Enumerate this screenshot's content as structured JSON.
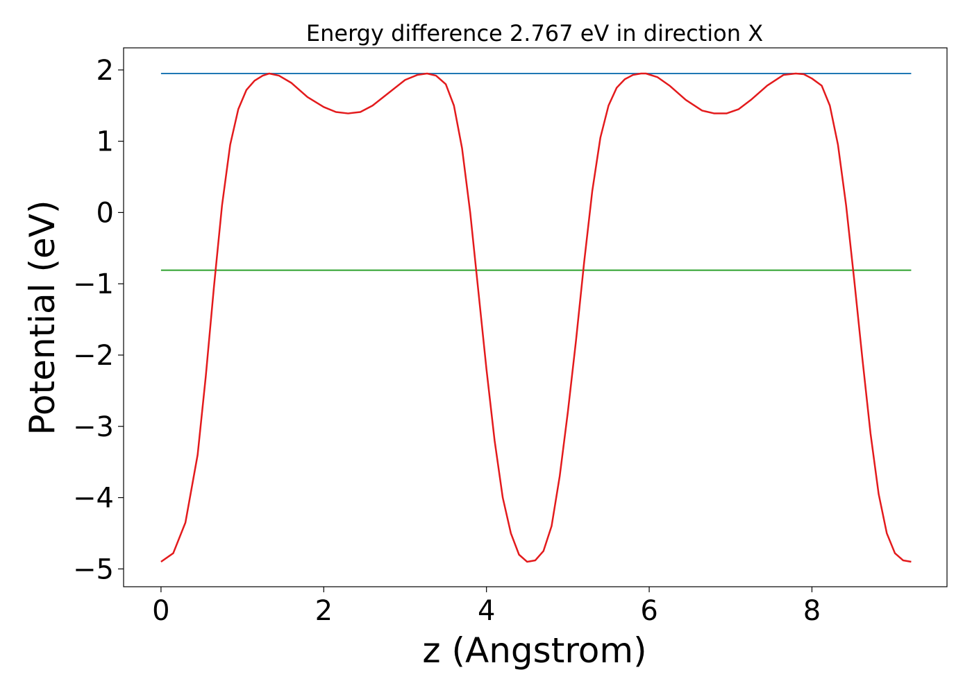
{
  "chart_data": {
    "type": "line",
    "title": "Energy difference 2.767 eV in direction X",
    "xlabel": "z (Angstrom)",
    "ylabel": "Potential (eV)",
    "xlim": [
      -0.46,
      9.66
    ],
    "ylim": [
      -5.25,
      2.31
    ],
    "xticks": [
      0,
      2,
      4,
      6,
      8
    ],
    "xtick_labels": [
      "0",
      "2",
      "4",
      "6",
      "8"
    ],
    "yticks": [
      2,
      1,
      0,
      -1,
      -2,
      -3,
      -4,
      -5
    ],
    "ytick_labels": [
      "2",
      "1",
      "0",
      "−1",
      "−2",
      "−3",
      "−4",
      "−5"
    ],
    "grid": false,
    "legend": "none",
    "series": [
      {
        "color": "#1f77b4",
        "style": "horizontal-line",
        "x": [
          0,
          9.22
        ],
        "y": [
          1.95,
          1.95
        ]
      },
      {
        "color": "#2ca02c",
        "style": "horizontal-line",
        "x": [
          0,
          9.22
        ],
        "y": [
          -0.81,
          -0.81
        ]
      },
      {
        "color": "#e31a1c",
        "style": "curve",
        "x": [
          0.0,
          0.15,
          0.3,
          0.45,
          0.55,
          0.65,
          0.75,
          0.85,
          0.95,
          1.05,
          1.15,
          1.25,
          1.33,
          1.45,
          1.6,
          1.8,
          2.0,
          2.15,
          2.3,
          2.45,
          2.6,
          2.8,
          3.0,
          3.15,
          3.27,
          3.38,
          3.5,
          3.6,
          3.7,
          3.8,
          3.9,
          4.0,
          4.1,
          4.2,
          4.3,
          4.4,
          4.5,
          4.6,
          4.7,
          4.8,
          4.9,
          5.0,
          5.1,
          5.2,
          5.3,
          5.4,
          5.5,
          5.6,
          5.7,
          5.8,
          5.9,
          5.96,
          6.1,
          6.25,
          6.45,
          6.65,
          6.8,
          6.95,
          7.1,
          7.25,
          7.45,
          7.65,
          7.8,
          7.9,
          8.0,
          8.12,
          8.22,
          8.32,
          8.42,
          8.52,
          8.62,
          8.72,
          8.82,
          8.92,
          9.02,
          9.12,
          9.22
        ],
        "y": [
          -4.9,
          -4.78,
          -4.35,
          -3.4,
          -2.3,
          -1.05,
          0.1,
          0.95,
          1.45,
          1.72,
          1.85,
          1.92,
          1.95,
          1.92,
          1.82,
          1.62,
          1.48,
          1.41,
          1.39,
          1.41,
          1.5,
          1.68,
          1.86,
          1.93,
          1.95,
          1.92,
          1.8,
          1.5,
          0.9,
          0.0,
          -1.1,
          -2.2,
          -3.2,
          -4.0,
          -4.5,
          -4.8,
          -4.9,
          -4.88,
          -4.75,
          -4.4,
          -3.7,
          -2.8,
          -1.8,
          -0.7,
          0.3,
          1.05,
          1.5,
          1.75,
          1.87,
          1.93,
          1.95,
          1.95,
          1.9,
          1.78,
          1.58,
          1.43,
          1.39,
          1.39,
          1.45,
          1.58,
          1.78,
          1.93,
          1.95,
          1.94,
          1.88,
          1.78,
          1.5,
          0.95,
          0.1,
          -0.95,
          -2.05,
          -3.1,
          -3.95,
          -4.5,
          -4.78,
          -4.88,
          -4.9
        ]
      }
    ]
  }
}
